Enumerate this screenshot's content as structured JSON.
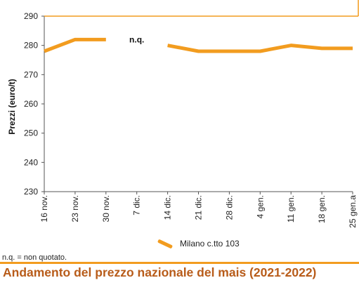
{
  "title": "Andamento del prezzo nazionale del mais (2021-2022)",
  "footnote": "n.q. = non quotato.",
  "colors": {
    "series": "#f29c1f",
    "title_text": "#b85c1a",
    "title_rule": "#f29c1f",
    "axis": "#555555"
  },
  "chart_data": {
    "type": "line",
    "categories": [
      "16 nov.",
      "23 nov.",
      "30 nov.",
      "7 dic.",
      "14 dic.",
      "21 dic.",
      "28 dic.",
      "4 gen.",
      "11 gen.",
      "18 gen.",
      "25 gen.a"
    ],
    "ylabel": "Prezzi (euro/t)",
    "ylim": [
      230,
      290
    ],
    "yticks": [
      230,
      240,
      250,
      260,
      270,
      280,
      290
    ],
    "grid": false,
    "legend_position": "bottom",
    "annotations": [
      {
        "text": "n.q.",
        "category": "7 dic."
      }
    ],
    "series": [
      {
        "name": "Milano  c.tto 103",
        "values": [
          278,
          282,
          282,
          null,
          280,
          278,
          278,
          278,
          280,
          279,
          279
        ]
      }
    ]
  }
}
